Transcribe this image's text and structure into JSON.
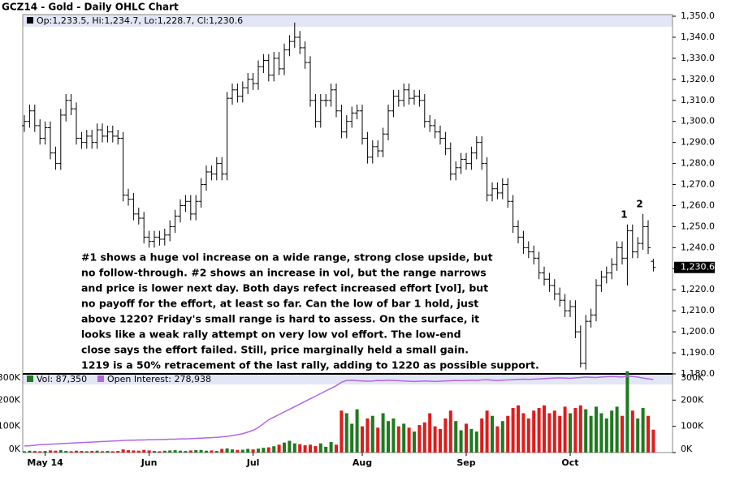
{
  "chart_data": {
    "type": "ohlc",
    "title": "GCZ14 - Gold - Daily OHLC Chart",
    "legend_text": "Op:1,233.5, Hi:1,234.7, Lo:1,228.7, Cl:1,230.6",
    "last_label": "1,230.6",
    "ohlc": [
      [
        1298,
        1303,
        1295,
        1300
      ],
      [
        1300,
        1308,
        1297,
        1305
      ],
      [
        1305,
        1308,
        1295,
        1298
      ],
      [
        1298,
        1301,
        1289,
        1292
      ],
      [
        1292,
        1300,
        1289,
        1297
      ],
      [
        1297,
        1300,
        1282,
        1285
      ],
      [
        1285,
        1288,
        1277,
        1280
      ],
      [
        1280,
        1306,
        1277,
        1303
      ],
      [
        1303,
        1313,
        1300,
        1310
      ],
      [
        1310,
        1313,
        1303,
        1306
      ],
      [
        1306,
        1309,
        1289,
        1292
      ],
      [
        1292,
        1295,
        1287,
        1290
      ],
      [
        1290,
        1296,
        1287,
        1293
      ],
      [
        1293,
        1296,
        1287,
        1290
      ],
      [
        1290,
        1299,
        1287,
        1296
      ],
      [
        1296,
        1299,
        1290,
        1293
      ],
      [
        1293,
        1298,
        1290,
        1295
      ],
      [
        1295,
        1298,
        1290,
        1293
      ],
      [
        1293,
        1296,
        1289,
        1292
      ],
      [
        1292,
        1295,
        1262,
        1265
      ],
      [
        1265,
        1268,
        1260,
        1263
      ],
      [
        1263,
        1266,
        1253,
        1256
      ],
      [
        1256,
        1259,
        1251,
        1254
      ],
      [
        1254,
        1257,
        1242,
        1245
      ],
      [
        1245,
        1248,
        1240,
        1243
      ],
      [
        1243,
        1248,
        1240,
        1245
      ],
      [
        1245,
        1248,
        1241,
        1244
      ],
      [
        1244,
        1249,
        1241,
        1246
      ],
      [
        1246,
        1253,
        1243,
        1250
      ],
      [
        1250,
        1258,
        1247,
        1255
      ],
      [
        1255,
        1263,
        1252,
        1260
      ],
      [
        1260,
        1265,
        1257,
        1262
      ],
      [
        1262,
        1265,
        1253,
        1256
      ],
      [
        1256,
        1265,
        1253,
        1262
      ],
      [
        1262,
        1273,
        1259,
        1270
      ],
      [
        1270,
        1279,
        1267,
        1276
      ],
      [
        1276,
        1279,
        1272,
        1275
      ],
      [
        1275,
        1283,
        1272,
        1280
      ],
      [
        1280,
        1283,
        1272,
        1275
      ],
      [
        1275,
        1314,
        1272,
        1311
      ],
      [
        1311,
        1318,
        1308,
        1315
      ],
      [
        1315,
        1318,
        1309,
        1312
      ],
      [
        1312,
        1319,
        1309,
        1316
      ],
      [
        1316,
        1323,
        1313,
        1320
      ],
      [
        1320,
        1323,
        1315,
        1318
      ],
      [
        1318,
        1329,
        1315,
        1326
      ],
      [
        1326,
        1332,
        1323,
        1329
      ],
      [
        1329,
        1332,
        1319,
        1322
      ],
      [
        1322,
        1333,
        1319,
        1330
      ],
      [
        1330,
        1333,
        1322,
        1325
      ],
      [
        1325,
        1337,
        1322,
        1334
      ],
      [
        1334,
        1341,
        1331,
        1338
      ],
      [
        1338,
        1347,
        1335,
        1340
      ],
      [
        1340,
        1343,
        1332,
        1335
      ],
      [
        1335,
        1338,
        1325,
        1328
      ],
      [
        1328,
        1331,
        1307,
        1310
      ],
      [
        1310,
        1313,
        1297,
        1300
      ],
      [
        1300,
        1313,
        1297,
        1310
      ],
      [
        1310,
        1313,
        1307,
        1310
      ],
      [
        1310,
        1318,
        1307,
        1315
      ],
      [
        1315,
        1318,
        1302,
        1305
      ],
      [
        1305,
        1308,
        1292,
        1295
      ],
      [
        1295,
        1303,
        1292,
        1300
      ],
      [
        1300,
        1307,
        1297,
        1304
      ],
      [
        1304,
        1308,
        1301,
        1305
      ],
      [
        1305,
        1308,
        1289,
        1292
      ],
      [
        1292,
        1295,
        1280,
        1283
      ],
      [
        1283,
        1291,
        1280,
        1288
      ],
      [
        1288,
        1291,
        1283,
        1286
      ],
      [
        1286,
        1297,
        1283,
        1294
      ],
      [
        1294,
        1308,
        1291,
        1305
      ],
      [
        1305,
        1315,
        1302,
        1312
      ],
      [
        1312,
        1315,
        1307,
        1310
      ],
      [
        1310,
        1318,
        1307,
        1315
      ],
      [
        1315,
        1318,
        1308,
        1311
      ],
      [
        1311,
        1315,
        1308,
        1312
      ],
      [
        1312,
        1315,
        1307,
        1310
      ],
      [
        1310,
        1313,
        1297,
        1300
      ],
      [
        1300,
        1303,
        1295,
        1298
      ],
      [
        1298,
        1301,
        1292,
        1295
      ],
      [
        1295,
        1298,
        1289,
        1292
      ],
      [
        1292,
        1295,
        1284,
        1287
      ],
      [
        1287,
        1290,
        1272,
        1275
      ],
      [
        1275,
        1281,
        1272,
        1278
      ],
      [
        1278,
        1285,
        1275,
        1282
      ],
      [
        1282,
        1285,
        1277,
        1280
      ],
      [
        1280,
        1288,
        1277,
        1285
      ],
      [
        1285,
        1293,
        1282,
        1290
      ],
      [
        1290,
        1293,
        1277,
        1280
      ],
      [
        1280,
        1283,
        1262,
        1265
      ],
      [
        1265,
        1271,
        1262,
        1268
      ],
      [
        1268,
        1271,
        1263,
        1266
      ],
      [
        1266,
        1273,
        1263,
        1270
      ],
      [
        1270,
        1273,
        1259,
        1262
      ],
      [
        1262,
        1265,
        1247,
        1250
      ],
      [
        1250,
        1253,
        1242,
        1245
      ],
      [
        1245,
        1248,
        1237,
        1240
      ],
      [
        1240,
        1243,
        1235,
        1238
      ],
      [
        1238,
        1241,
        1232,
        1235
      ],
      [
        1235,
        1238,
        1225,
        1228
      ],
      [
        1228,
        1231,
        1222,
        1225
      ],
      [
        1225,
        1228,
        1219,
        1222
      ],
      [
        1222,
        1225,
        1215,
        1218
      ],
      [
        1218,
        1221,
        1212,
        1215
      ],
      [
        1215,
        1218,
        1207,
        1210
      ],
      [
        1210,
        1215,
        1207,
        1212
      ],
      [
        1212,
        1215,
        1197,
        1200
      ],
      [
        1200,
        1203,
        1183,
        1185
      ],
      [
        1185,
        1208,
        1182,
        1205
      ],
      [
        1205,
        1211,
        1202,
        1208
      ],
      [
        1208,
        1225,
        1205,
        1222
      ],
      [
        1222,
        1229,
        1219,
        1226
      ],
      [
        1226,
        1231,
        1223,
        1228
      ],
      [
        1228,
        1235,
        1225,
        1232
      ],
      [
        1232,
        1243,
        1229,
        1240
      ],
      [
        1240,
        1243,
        1232,
        1235
      ],
      [
        1235,
        1251,
        1222,
        1248
      ],
      [
        1248,
        1251,
        1235,
        1238
      ],
      [
        1238,
        1245,
        1235,
        1242
      ],
      [
        1242,
        1256,
        1239,
        1250
      ],
      [
        1250,
        1253,
        1237,
        1240
      ],
      [
        1233.5,
        1234.7,
        1228.7,
        1230.6
      ]
    ],
    "volume": [
      5000,
      7000,
      6000,
      5000,
      6000,
      8000,
      7000,
      9000,
      6000,
      5000,
      7000,
      6000,
      5000,
      6000,
      7000,
      5000,
      6000,
      5000,
      6000,
      12000,
      9000,
      8000,
      7000,
      10000,
      8000,
      6000,
      5000,
      7000,
      8000,
      9000,
      7000,
      6000,
      8000,
      9000,
      10000,
      7000,
      8000,
      6000,
      14000,
      16000,
      12000,
      10000,
      11000,
      14000,
      12000,
      15000,
      18000,
      20000,
      24000,
      30000,
      38000,
      45000,
      35000,
      32000,
      28000,
      30000,
      25000,
      35000,
      22000,
      40000,
      30000,
      160000,
      150000,
      110000,
      165000,
      100000,
      130000,
      140000,
      95000,
      150000,
      120000,
      130000,
      100000,
      110000,
      95000,
      80000,
      105000,
      115000,
      150000,
      100000,
      90000,
      130000,
      160000,
      120000,
      85000,
      110000,
      90000,
      80000,
      130000,
      160000,
      140000,
      100000,
      120000,
      140000,
      170000,
      180000,
      150000,
      130000,
      160000,
      170000,
      180000,
      150000,
      160000,
      140000,
      175000,
      150000,
      170000,
      180000,
      165000,
      140000,
      175000,
      150000,
      130000,
      160000,
      175000,
      140000,
      310000,
      160000,
      130000,
      170000,
      140000,
      87350
    ],
    "open_interest": [
      25000,
      26000,
      28000,
      30000,
      31000,
      32000,
      33000,
      34000,
      35000,
      36000,
      37000,
      38000,
      39000,
      40000,
      41000,
      42000,
      43000,
      44000,
      45000,
      46000,
      47000,
      47000,
      48000,
      48000,
      49000,
      49000,
      50000,
      50000,
      51000,
      51000,
      52000,
      52000,
      53000,
      54000,
      55000,
      56000,
      57000,
      58000,
      60000,
      62000,
      65000,
      68000,
      72000,
      78000,
      85000,
      95000,
      110000,
      125000,
      135000,
      145000,
      155000,
      165000,
      175000,
      185000,
      195000,
      205000,
      215000,
      225000,
      235000,
      245000,
      255000,
      268000,
      275000,
      276000,
      274000,
      273000,
      272000,
      273000,
      275000,
      274000,
      276000,
      275000,
      274000,
      273000,
      272000,
      271000,
      272000,
      273000,
      272000,
      271000,
      272000,
      273000,
      274000,
      275000,
      274000,
      275000,
      276000,
      275000,
      277000,
      278000,
      276000,
      275000,
      276000,
      277000,
      278000,
      279000,
      280000,
      279000,
      280000,
      281000,
      282000,
      283000,
      284000,
      285000,
      284000,
      283000,
      285000,
      286000,
      288000,
      287000,
      286000,
      288000,
      289000,
      290000,
      289000,
      288000,
      292000,
      290000,
      288000,
      284000,
      281000,
      278938
    ],
    "vol_legend": "Vol: 87,350",
    "oi_legend": "Open Interest: 278,938",
    "up_color": "#1f7a1f",
    "down_color": "#e01b1b",
    "oi_color": "#b366e6",
    "ylim": [
      1180,
      1350
    ],
    "yticks": [
      {
        "value": 1180,
        "label": "1,180.0"
      },
      {
        "value": 1190,
        "label": "1,190.0"
      },
      {
        "value": 1200,
        "label": "1,200.0"
      },
      {
        "value": 1210,
        "label": "1,210.0"
      },
      {
        "value": 1220,
        "label": "1,220.0"
      },
      {
        "value": 1230,
        "label": "1,230.0"
      },
      {
        "value": 1240,
        "label": "1,240.0"
      },
      {
        "value": 1250,
        "label": "1,250.0"
      },
      {
        "value": 1260,
        "label": "1,260.0"
      },
      {
        "value": 1270,
        "label": "1,270.0"
      },
      {
        "value": 1280,
        "label": "1,280.0"
      },
      {
        "value": 1290,
        "label": "1,290.0"
      },
      {
        "value": 1300,
        "label": "1,300.0"
      },
      {
        "value": 1310,
        "label": "1,310.0"
      },
      {
        "value": 1320,
        "label": "1,320.0"
      },
      {
        "value": 1330,
        "label": "1,330.0"
      },
      {
        "value": 1340,
        "label": "1,340.0"
      },
      {
        "value": 1350,
        "label": "1,350.0"
      }
    ],
    "y2lim": [
      0,
      300000
    ],
    "y2ticks": [
      {
        "value": 0,
        "label": "0K"
      },
      {
        "value": 100000,
        "label": "100K"
      },
      {
        "value": 200000,
        "label": "200K"
      },
      {
        "value": 300000,
        "label": "300K"
      }
    ],
    "xticks": [
      {
        "value": 4,
        "label": "May 14"
      },
      {
        "value": 24,
        "label": "Jun"
      },
      {
        "value": 44,
        "label": "Jul"
      },
      {
        "value": 65,
        "label": "Aug"
      },
      {
        "value": 85,
        "label": "Sep"
      },
      {
        "value": 105,
        "label": "Oct"
      }
    ],
    "annotations": [
      {
        "text": "1",
        "index": 116
      },
      {
        "text": "2",
        "index": 119
      }
    ],
    "note": [
      "#1 shows a huge vol increase on a wide range, strong close upside, but",
      "no follow-through.  #2 shows an increase in vol, but the range narrows",
      "and price is lower next day.  Both days refect increased effort [vol], but",
      "no payoff for the effort, at least so far.  Can the low of bar 1 hold, just",
      "above 1220?  Friday's small range is hard to assess.  On the surface, it",
      "looks like a weak rally attempt on very low vol effort.  The low-end",
      "close says the effort failed.  Still, price marginally held a small gain.",
      "1219 is a 50% retracement of the last rally, adding to 1220 as possible support."
    ]
  }
}
